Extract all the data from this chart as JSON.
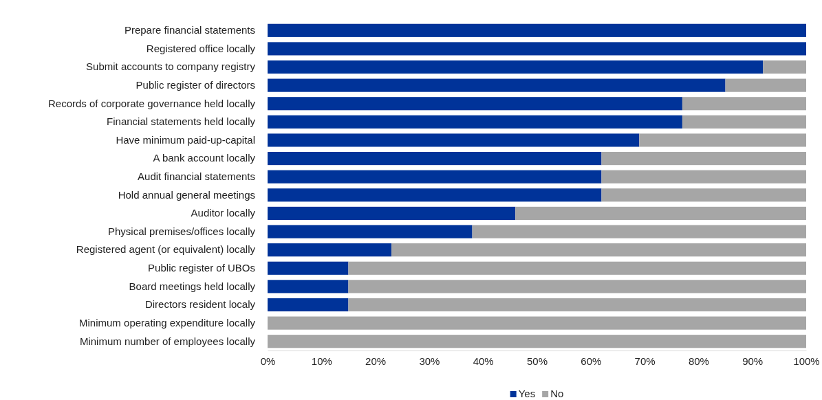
{
  "chart_data": {
    "type": "bar",
    "orientation": "horizontal",
    "stacked": true,
    "categories": [
      "Prepare financial statements",
      "Registered office locally",
      "Submit accounts to company registry",
      "Public register of directors",
      "Records of corporate governance held locally",
      "Financial statements held locally",
      "Have minimum paid-up-capital",
      "A bank account locally",
      "Audit financial statements",
      "Hold annual general meetings",
      "Auditor locally",
      "Physical premises/offices locally",
      "Registered agent (or equivalent) locally",
      "Public register of UBOs",
      "Board meetings held locally",
      "Directors resident localy",
      "Minimum operating expenditure locally",
      "Minimum number of employees locally"
    ],
    "series": [
      {
        "name": "Yes",
        "color": "#003399",
        "values": [
          100,
          100,
          92,
          85,
          77,
          77,
          69,
          62,
          62,
          62,
          46,
          38,
          23,
          15,
          15,
          15,
          0,
          0
        ]
      },
      {
        "name": "No",
        "color": "#a6a6a6",
        "values": [
          0,
          0,
          8,
          15,
          23,
          23,
          31,
          38,
          38,
          38,
          54,
          62,
          77,
          85,
          85,
          85,
          100,
          100
        ]
      }
    ],
    "xlim": [
      0,
      100
    ],
    "xticks": [
      {
        "value": 0,
        "label": "0%"
      },
      {
        "value": 10,
        "label": "10%"
      },
      {
        "value": 20,
        "label": "20%"
      },
      {
        "value": 30,
        "label": "30%"
      },
      {
        "value": 40,
        "label": "40%"
      },
      {
        "value": 50,
        "label": "50%"
      },
      {
        "value": 60,
        "label": "60%"
      },
      {
        "value": 70,
        "label": "70%"
      },
      {
        "value": 80,
        "label": "80%"
      },
      {
        "value": 90,
        "label": "90%"
      },
      {
        "value": 100,
        "label": "100%"
      }
    ],
    "grid": false,
    "legend": "bottom"
  }
}
